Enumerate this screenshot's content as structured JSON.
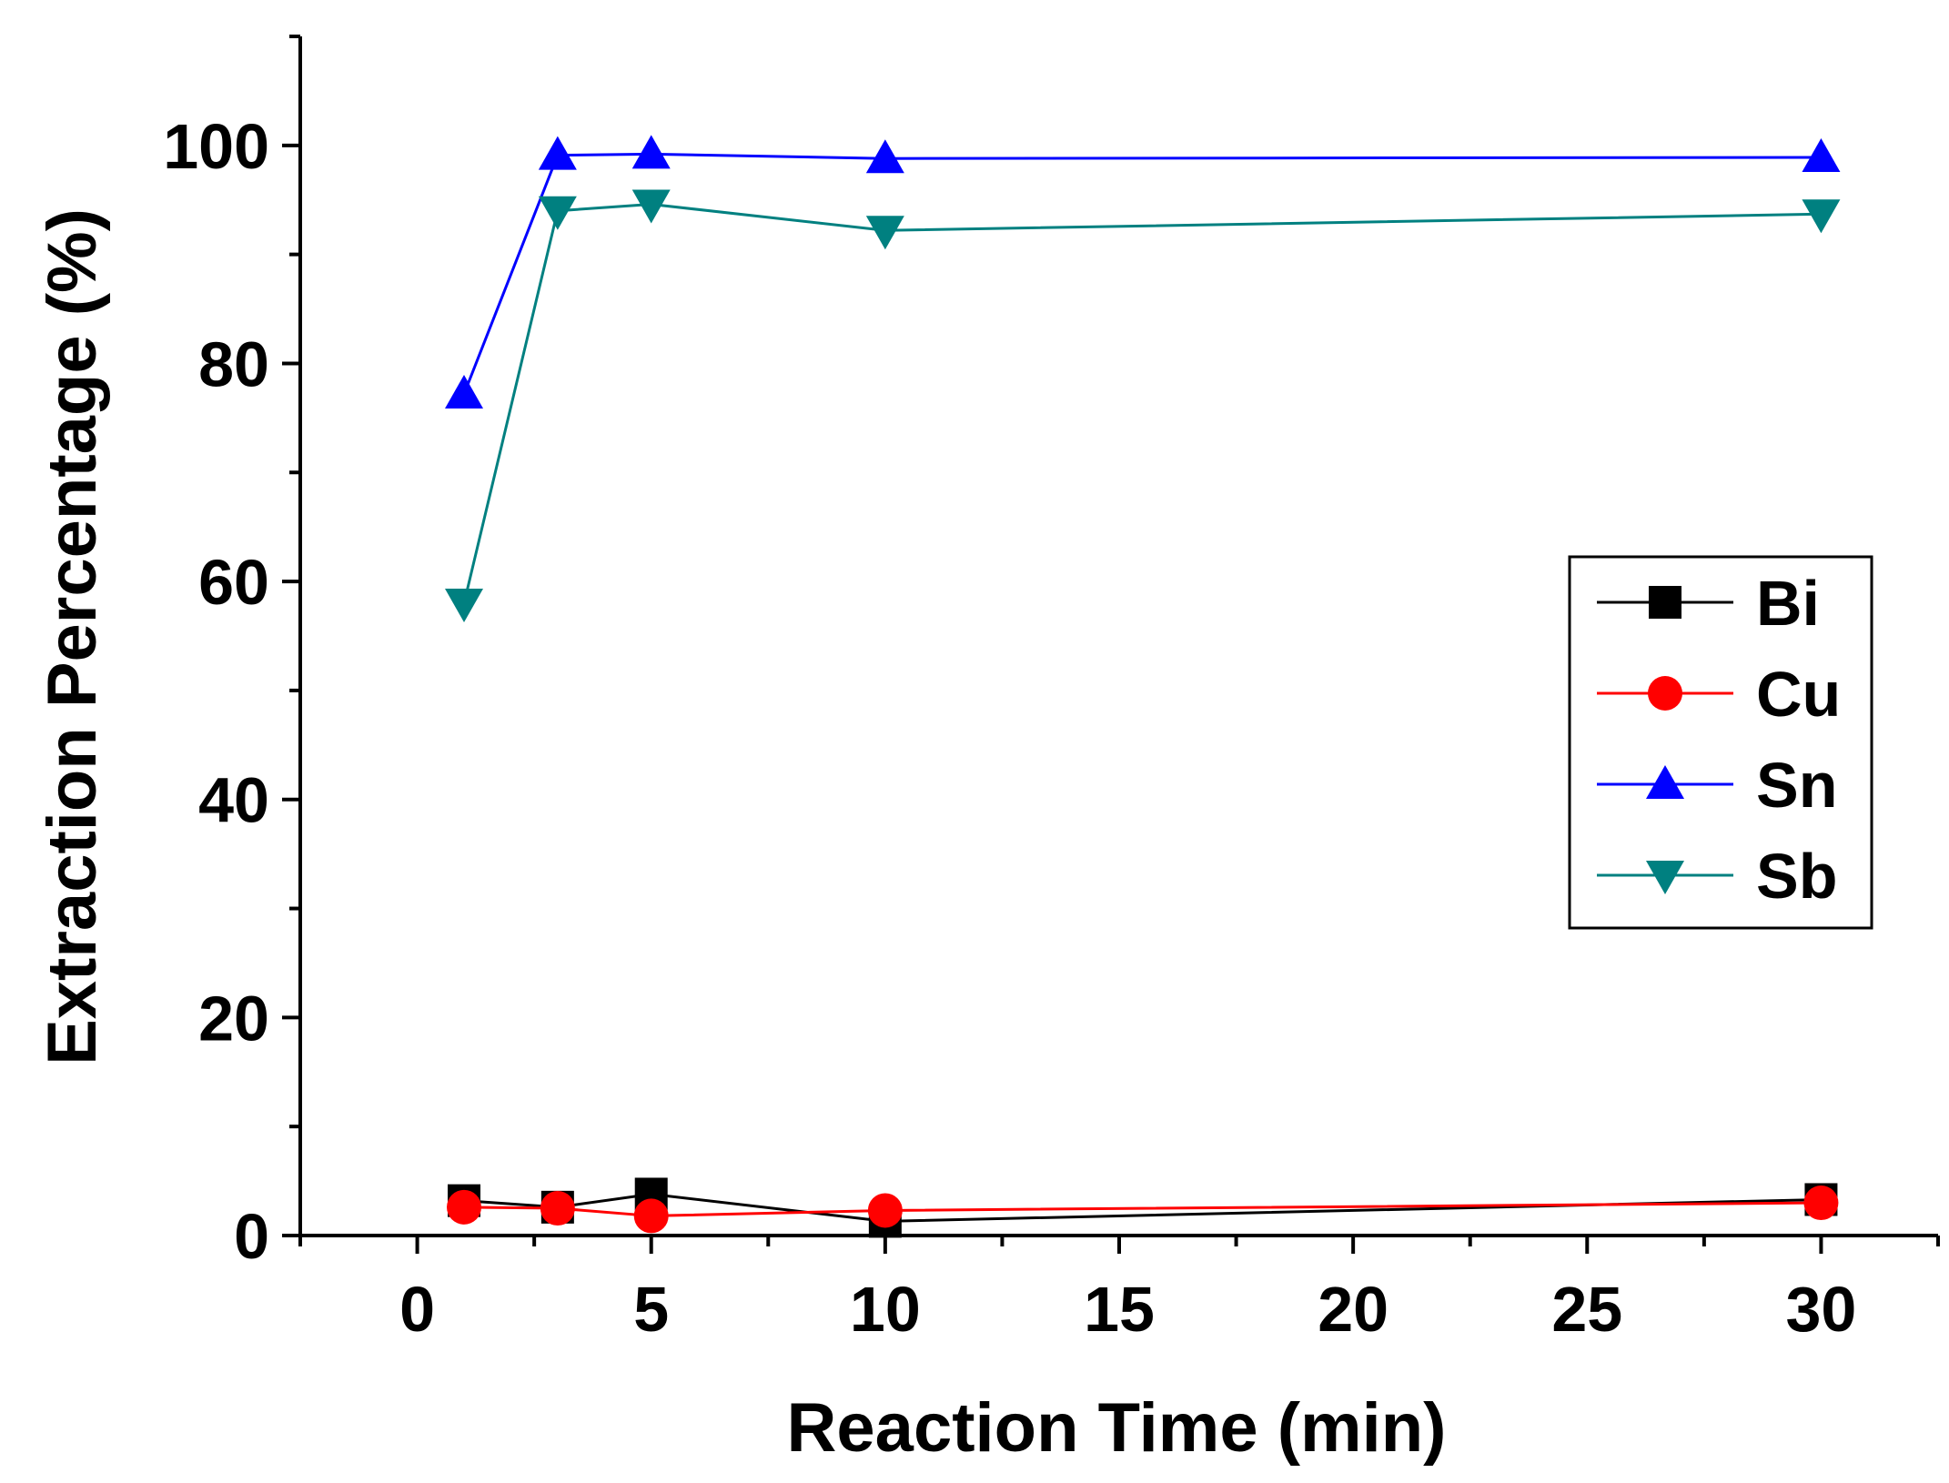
{
  "chart_data": {
    "type": "line",
    "title": "",
    "xlabel": "Reaction Time (min)",
    "ylabel": "Extraction Percentage (%)",
    "xlim": [
      -2.5,
      32.5
    ],
    "ylim": [
      0,
      110
    ],
    "x_ticks": [
      0,
      5,
      10,
      15,
      20,
      25,
      30
    ],
    "x_tick_labels": [
      "0",
      "5",
      "10",
      "15",
      "20",
      "25",
      "30"
    ],
    "x_minor_ticks": [
      -2.5,
      2.5,
      7.5,
      12.5,
      17.5,
      22.5,
      27.5,
      32.5
    ],
    "y_ticks": [
      0,
      20,
      40,
      60,
      80,
      100
    ],
    "y_tick_labels": [
      "0",
      "20",
      "40",
      "60",
      "80",
      "100"
    ],
    "y_minor_ticks": [
      10,
      30,
      50,
      70,
      90,
      110
    ],
    "grid": false,
    "legend_position": "right",
    "x": [
      1,
      3,
      5,
      10,
      30
    ],
    "series": [
      {
        "name": "Bi",
        "color": "#000000",
        "marker": "square",
        "values": [
          3.2,
          2.6,
          3.8,
          1.3,
          3.3
        ]
      },
      {
        "name": "Cu",
        "color": "#ff0000",
        "marker": "circle",
        "values": [
          2.6,
          2.5,
          1.8,
          2.3,
          3.0
        ]
      },
      {
        "name": "Sn",
        "color": "#0000ff",
        "marker": "triangle-up",
        "values": [
          77.2,
          99.1,
          99.2,
          98.8,
          98.9
        ]
      },
      {
        "name": "Sb",
        "color": "#008080",
        "marker": "triangle-down",
        "values": [
          58.0,
          94.0,
          94.6,
          92.2,
          93.7
        ]
      }
    ]
  }
}
